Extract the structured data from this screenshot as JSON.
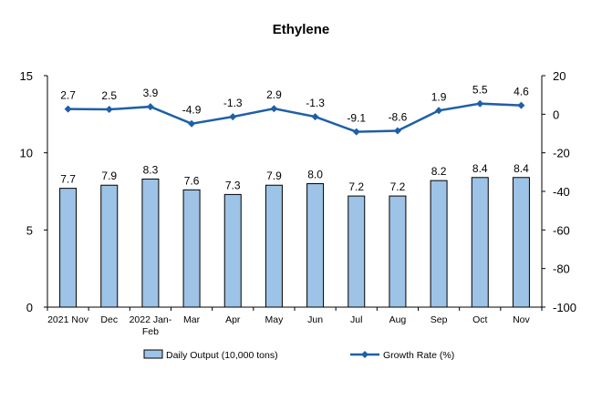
{
  "chart_data": {
    "type": "bar+line",
    "title": "Ethylene",
    "categories": [
      [
        "2021 Nov"
      ],
      [
        "Dec"
      ],
      [
        "2022 Jan-",
        "Feb"
      ],
      [
        "Mar"
      ],
      [
        "Apr"
      ],
      [
        "May"
      ],
      [
        "Jun"
      ],
      [
        "Jul"
      ],
      [
        "Aug"
      ],
      [
        "Sep"
      ],
      [
        "Oct"
      ],
      [
        "Nov"
      ]
    ],
    "series": [
      {
        "name": "Daily Output (10,000 tons)",
        "kind": "bar",
        "axis": "left",
        "color": "#9dc3e6",
        "stroke": "#000000",
        "values": [
          7.7,
          7.9,
          8.3,
          7.6,
          7.3,
          7.9,
          8.0,
          7.2,
          7.2,
          8.2,
          8.4,
          8.4
        ],
        "labels": [
          "7.7",
          "7.9",
          "8.3",
          "7.6",
          "7.3",
          "7.9",
          "8.0",
          "7.2",
          "7.2",
          "8.2",
          "8.4",
          "8.4"
        ]
      },
      {
        "name": "Growth Rate (%)",
        "kind": "line",
        "axis": "right",
        "color": "#1f5fa8",
        "values": [
          2.7,
          2.5,
          3.9,
          -4.9,
          -1.3,
          2.9,
          -1.3,
          -9.1,
          -8.6,
          1.9,
          5.5,
          4.6
        ],
        "labels": [
          "2.7",
          "2.5",
          "3.9",
          "-4.9",
          "-1.3",
          "2.9",
          "-1.3",
          "-9.1",
          "-8.6",
          "1.9",
          "5.5",
          "4.6"
        ]
      }
    ],
    "y_left": {
      "min": 0,
      "max": 15,
      "ticks": [
        "0",
        "5",
        "10",
        "15"
      ],
      "tick_values": [
        0,
        5,
        10,
        15
      ]
    },
    "y_right": {
      "min": -100,
      "max": 20,
      "ticks": [
        "-100",
        "-80",
        "-60",
        "-40",
        "-20",
        "0",
        "20"
      ],
      "tick_values": [
        -100,
        -80,
        -60,
        -40,
        -20,
        0,
        20
      ]
    },
    "grid": false,
    "legend_position": "bottom"
  }
}
